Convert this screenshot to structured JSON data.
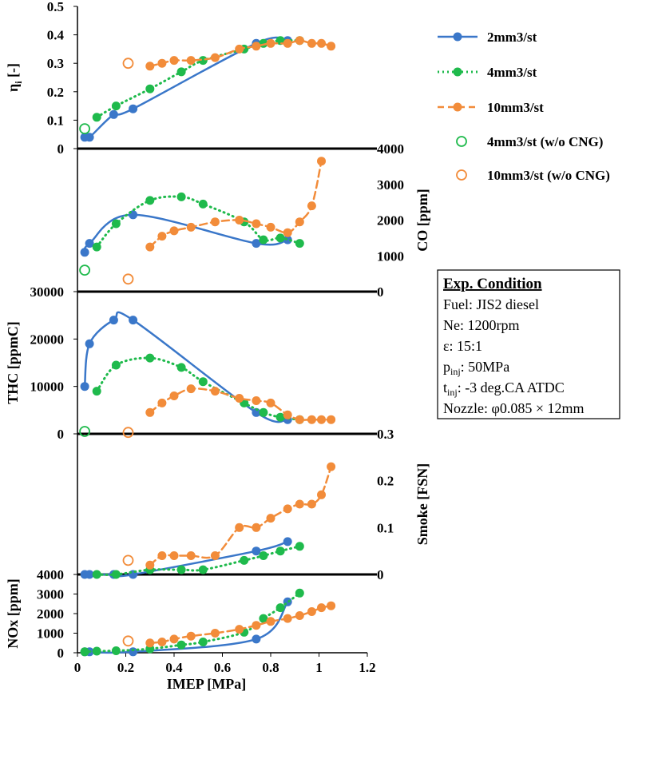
{
  "colors": {
    "2mm3/st": "#3a77c9",
    "4mm3/st": "#1fba4c",
    "10mm3/st": "#f28c3a",
    "axis": "#000000"
  },
  "chart_data": [
    {
      "type": "line",
      "panel": "efficiency",
      "ylabel_main": "η",
      "ylabel_sub": "i",
      "ylabel_unit": " [-]",
      "yside": "left",
      "ylim": [
        0,
        0.5
      ],
      "yticks": [
        "0",
        "0.1",
        "0.2",
        "0.3",
        "0.4",
        "0.5"
      ],
      "xlim": [
        0,
        1.2
      ],
      "series": [
        {
          "name": "2mm3/st",
          "style": "solid",
          "x": [
            0.03,
            0.05,
            0.15,
            0.23,
            0.74,
            0.87
          ],
          "y": [
            0.04,
            0.04,
            0.12,
            0.14,
            0.37,
            0.38
          ]
        },
        {
          "name": "4mm3/st",
          "style": "dotted",
          "x": [
            0.08,
            0.16,
            0.3,
            0.43,
            0.52,
            0.69,
            0.77,
            0.84,
            0.92
          ],
          "y": [
            0.11,
            0.15,
            0.21,
            0.27,
            0.31,
            0.35,
            0.37,
            0.38,
            0.38
          ]
        },
        {
          "name": "10mm3/st",
          "style": "dashed",
          "x": [
            0.3,
            0.35,
            0.4,
            0.47,
            0.57,
            0.67,
            0.74,
            0.8,
            0.87,
            0.92,
            0.97,
            1.01,
            1.05
          ],
          "y": [
            0.29,
            0.3,
            0.31,
            0.31,
            0.32,
            0.35,
            0.36,
            0.37,
            0.37,
            0.38,
            0.37,
            0.37,
            0.36
          ]
        },
        {
          "name": "4mm3/st (w/o CNG)",
          "style": "open",
          "x": [
            0.03
          ],
          "y": [
            0.07
          ]
        },
        {
          "name": "10mm3/st (w/o CNG)",
          "style": "open",
          "x": [
            0.21
          ],
          "y": [
            0.3
          ]
        }
      ]
    },
    {
      "type": "line",
      "panel": "CO",
      "ylabel": "CO [ppm]",
      "yside": "right",
      "ylim": [
        0,
        4000
      ],
      "yticks": [
        "0",
        "1000",
        "2000",
        "3000",
        "4000"
      ],
      "xlim": [
        0,
        1.2
      ],
      "series": [
        {
          "name": "2mm3/st",
          "style": "solid",
          "x": [
            0.03,
            0.05,
            0.23,
            0.74,
            0.87
          ],
          "y": [
            1100,
            1350,
            2150,
            1350,
            1450
          ]
        },
        {
          "name": "4mm3/st",
          "style": "dotted",
          "x": [
            0.08,
            0.16,
            0.3,
            0.43,
            0.52,
            0.69,
            0.77,
            0.84,
            0.92
          ],
          "y": [
            1250,
            1900,
            2550,
            2650,
            2450,
            1950,
            1450,
            1500,
            1350
          ]
        },
        {
          "name": "10mm3/st",
          "style": "dashed",
          "x": [
            0.3,
            0.35,
            0.4,
            0.47,
            0.57,
            0.67,
            0.74,
            0.8,
            0.87,
            0.92,
            0.97,
            1.01
          ],
          "y": [
            1250,
            1550,
            1700,
            1800,
            1950,
            2000,
            1900,
            1800,
            1650,
            1950,
            2400,
            3650
          ]
        },
        {
          "name": "4mm3/st (w/o CNG)",
          "style": "open",
          "x": [
            0.03
          ],
          "y": [
            600
          ]
        },
        {
          "name": "10mm3/st (w/o CNG)",
          "style": "open",
          "x": [
            0.21
          ],
          "y": [
            350
          ]
        }
      ]
    },
    {
      "type": "line",
      "panel": "THC",
      "ylabel": "THC [ppmC]",
      "yside": "left",
      "ylim": [
        0,
        30000
      ],
      "yticks": [
        "0",
        "10000",
        "20000",
        "30000"
      ],
      "xlim": [
        0,
        1.2
      ],
      "series": [
        {
          "name": "2mm3/st",
          "style": "solid",
          "x": [
            0.03,
            0.05,
            0.15,
            0.23,
            0.74,
            0.87
          ],
          "y": [
            10000,
            19000,
            24000,
            24000,
            4500,
            3000
          ]
        },
        {
          "name": "4mm3/st",
          "style": "dotted",
          "x": [
            0.08,
            0.16,
            0.3,
            0.43,
            0.52,
            0.69,
            0.77,
            0.84,
            0.92
          ],
          "y": [
            9000,
            14500,
            16000,
            14000,
            11000,
            6500,
            4500,
            3500,
            3000
          ]
        },
        {
          "name": "10mm3/st",
          "style": "dashed",
          "x": [
            0.3,
            0.35,
            0.4,
            0.47,
            0.57,
            0.67,
            0.74,
            0.8,
            0.87,
            0.92,
            0.97,
            1.01,
            1.05
          ],
          "y": [
            4500,
            6500,
            8000,
            9500,
            9000,
            7500,
            7000,
            6500,
            4000,
            3000,
            3000,
            3000,
            3000
          ]
        },
        {
          "name": "4mm3/st (w/o CNG)",
          "style": "open",
          "x": [
            0.03
          ],
          "y": [
            500
          ]
        },
        {
          "name": "10mm3/st (w/o CNG)",
          "style": "open",
          "x": [
            0.21
          ],
          "y": [
            300
          ]
        }
      ]
    },
    {
      "type": "line",
      "panel": "Smoke",
      "ylabel": "Smoke [FSN]",
      "yside": "right",
      "ylim": [
        0,
        0.3
      ],
      "yticks": [
        "0",
        "0.1",
        "0.2",
        "0.3"
      ],
      "xlim": [
        0,
        1.2
      ],
      "series": [
        {
          "name": "2mm3/st",
          "style": "solid",
          "x": [
            0.03,
            0.05,
            0.15,
            0.23,
            0.74,
            0.87
          ],
          "y": [
            0,
            0,
            0,
            0,
            0.05,
            0.07
          ]
        },
        {
          "name": "4mm3/st",
          "style": "dotted",
          "x": [
            0.08,
            0.16,
            0.3,
            0.43,
            0.52,
            0.69,
            0.77,
            0.84,
            0.92
          ],
          "y": [
            0,
            0,
            0.01,
            0.01,
            0.01,
            0.03,
            0.04,
            0.05,
            0.06
          ]
        },
        {
          "name": "10mm3/st",
          "style": "dashed",
          "x": [
            0.3,
            0.35,
            0.4,
            0.47,
            0.57,
            0.67,
            0.74,
            0.8,
            0.87,
            0.92,
            0.97,
            1.01,
            1.05
          ],
          "y": [
            0.02,
            0.04,
            0.04,
            0.04,
            0.04,
            0.1,
            0.1,
            0.12,
            0.14,
            0.15,
            0.15,
            0.17,
            0.23
          ]
        },
        {
          "name": "10mm3/st (w/o CNG)",
          "style": "open",
          "x": [
            0.21
          ],
          "y": [
            0.03
          ]
        }
      ]
    },
    {
      "type": "line",
      "panel": "NOx",
      "ylabel": "NOx [ppm]",
      "yside": "left",
      "ylim": [
        0,
        4000
      ],
      "yticks": [
        "0",
        "1000",
        "2000",
        "3000",
        "4000"
      ],
      "xlim": [
        0,
        1.2
      ],
      "xticks": [
        "0",
        "0.2",
        "0.4",
        "0.6",
        "0.8",
        "1",
        "1.2"
      ],
      "xlabel": "IMEP [MPa]",
      "series": [
        {
          "name": "2mm3/st",
          "style": "solid",
          "x": [
            0.03,
            0.05,
            0.23,
            0.74,
            0.87
          ],
          "y": [
            50,
            50,
            50,
            700,
            2600
          ]
        },
        {
          "name": "4mm3/st",
          "style": "dotted",
          "x": [
            0.03,
            0.08,
            0.16,
            0.3,
            0.43,
            0.52,
            0.69,
            0.77,
            0.84,
            0.92
          ],
          "y": [
            50,
            80,
            100,
            200,
            400,
            550,
            1050,
            1750,
            2300,
            3050
          ]
        },
        {
          "name": "10mm3/st",
          "style": "dashed",
          "x": [
            0.3,
            0.35,
            0.4,
            0.47,
            0.57,
            0.67,
            0.74,
            0.8,
            0.87,
            0.92,
            0.97,
            1.01,
            1.05
          ],
          "y": [
            500,
            550,
            700,
            850,
            1000,
            1200,
            1400,
            1600,
            1750,
            1900,
            2100,
            2300,
            2400
          ]
        },
        {
          "name": "10mm3/st (w/o CNG)",
          "style": "open",
          "x": [
            0.21
          ],
          "y": [
            600
          ]
        }
      ]
    }
  ],
  "legend": {
    "items": [
      {
        "label": "2mm3/st",
        "series": "2mm3/st",
        "style": "solid"
      },
      {
        "label": "4mm3/st",
        "series": "4mm3/st",
        "style": "dotted"
      },
      {
        "label": "10mm3/st",
        "series": "10mm3/st",
        "style": "dashed"
      },
      {
        "label": "4mm3/st (w/o CNG)",
        "series": "4mm3/st",
        "style": "open"
      },
      {
        "label": "10mm3/st (w/o CNG)",
        "series": "10mm3/st",
        "style": "open"
      }
    ]
  },
  "conditions": {
    "title": "Exp. Condition",
    "fuel": "Fuel: JIS2 diesel",
    "ne": "Ne: 1200rpm",
    "eps": "ε: 15:1",
    "pinj_main": "p",
    "pinj_sub": "inj",
    "pinj_value": ": 50MPa",
    "tinj_main": "t",
    "tinj_sub": "inj",
    "tinj_value": ": -3 deg.CA ATDC",
    "nozzle": "Nozzle: φ0.085 × 12mm"
  }
}
